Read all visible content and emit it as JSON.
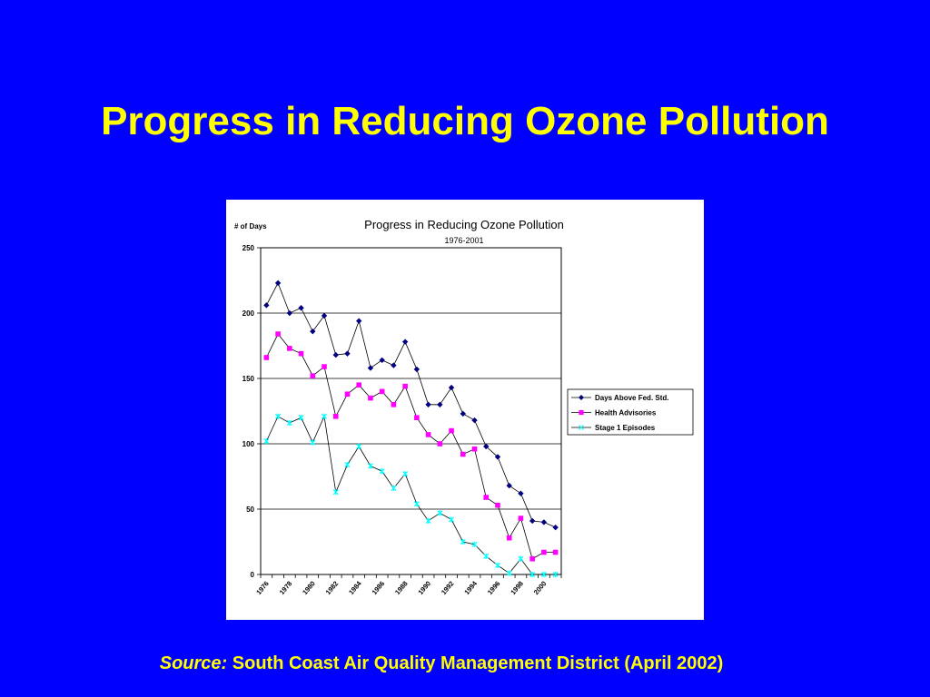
{
  "slide": {
    "title": "Progress in Reducing Ozone Pollution",
    "source_label": "Source:",
    "source_text": " South Coast Air Quality Management District (April 2002)"
  },
  "colors": {
    "background": "#0000ff",
    "title": "#ffff00",
    "series_days": "#000080",
    "series_health": "#ff00ff",
    "series_stage1": "#00ffff"
  },
  "chart_data": {
    "type": "line",
    "title": "Progress in Reducing Ozone Pollution",
    "subtitle": "1976-2001",
    "ylabel": "# of Days",
    "xlabel": "",
    "ylim": [
      0,
      250
    ],
    "yticks": [
      0,
      50,
      100,
      150,
      200,
      250
    ],
    "grid": true,
    "legend_position": "right",
    "x": [
      1976,
      1977,
      1978,
      1979,
      1980,
      1981,
      1982,
      1983,
      1984,
      1985,
      1986,
      1987,
      1988,
      1989,
      1990,
      1991,
      1992,
      1993,
      1994,
      1995,
      1996,
      1997,
      1998,
      1999,
      2000,
      2001
    ],
    "x_tick_labels": [
      "1976",
      "1978",
      "1980",
      "1982",
      "1984",
      "1986",
      "1988",
      "1990",
      "1992",
      "1994",
      "1996",
      "1998",
      "2000"
    ],
    "series": [
      {
        "name": "Days Above Fed. Std.",
        "marker": "diamond",
        "color": "#000080",
        "values": [
          206,
          223,
          200,
          204,
          186,
          198,
          168,
          169,
          194,
          158,
          164,
          160,
          178,
          157,
          130,
          130,
          143,
          123,
          118,
          98,
          90,
          68,
          62,
          41,
          40,
          36
        ]
      },
      {
        "name": "Health Advisories",
        "marker": "square",
        "color": "#ff00ff",
        "values": [
          166,
          184,
          173,
          169,
          152,
          159,
          121,
          138,
          145,
          135,
          140,
          130,
          144,
          120,
          107,
          100,
          110,
          92,
          96,
          59,
          53,
          28,
          43,
          12,
          17,
          17
        ]
      },
      {
        "name": "Stage 1 Episodes",
        "marker": "star",
        "color": "#00ffff",
        "values": [
          102,
          121,
          116,
          120,
          101,
          121,
          63,
          84,
          98,
          83,
          79,
          66,
          77,
          54,
          41,
          47,
          42,
          25,
          23,
          14,
          7,
          1,
          12,
          0,
          0,
          0
        ]
      }
    ]
  }
}
